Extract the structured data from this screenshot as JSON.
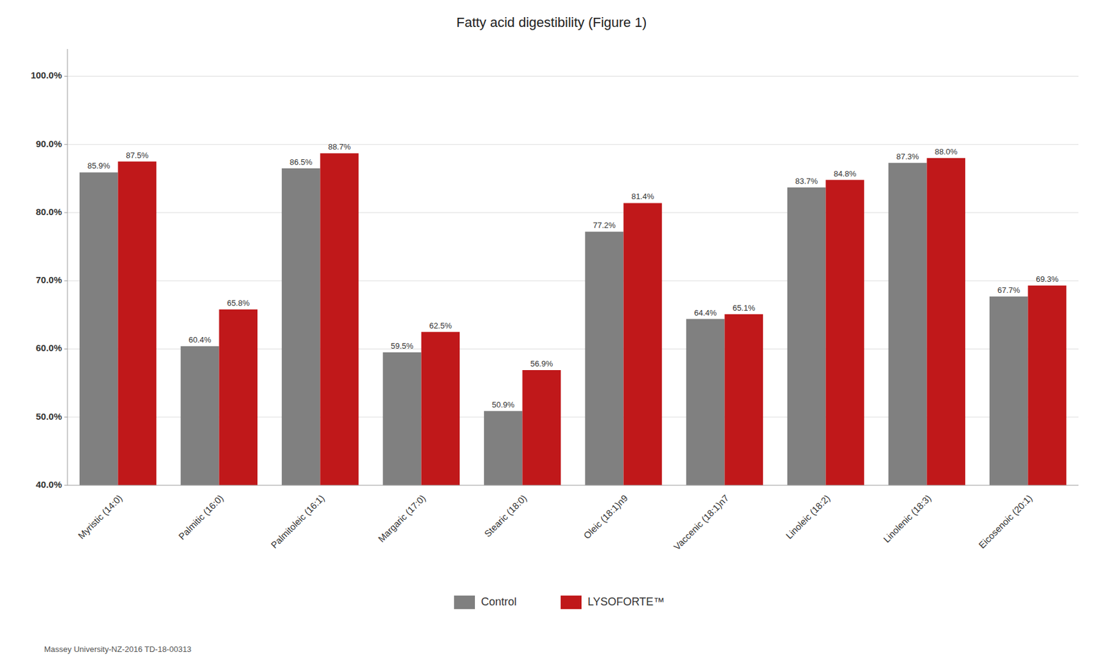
{
  "chart_data": {
    "type": "bar",
    "title": "Fatty acid digestibility (Figure 1)",
    "categories": [
      "Myristic (14:0)",
      "Palmitic (16:0)",
      "Palmitoleic (16:1)",
      "Margaric (17:0)",
      "Stearic (18:0)",
      "Oleic (18:1)n9",
      "Vaccenic (18:1)n7",
      "Linoleic (18:2)",
      "Linolenic (18:3)",
      "Eicosenoic (20:1)"
    ],
    "series": [
      {
        "name": "Control",
        "color": "#808080",
        "values": [
          85.9,
          60.4,
          86.5,
          59.5,
          50.9,
          77.2,
          64.4,
          83.7,
          87.3,
          67.7
        ],
        "value_labels": [
          "85.9%",
          "60.4%",
          "86.5%",
          "59.5%",
          "50.9%",
          "77.2%",
          "64.4%",
          "83.7%",
          "87.3%",
          "67.7%"
        ]
      },
      {
        "name": "LYSOFORTE™",
        "color": "#C0181A",
        "values": [
          87.5,
          65.8,
          88.7,
          62.5,
          56.9,
          81.4,
          65.1,
          84.8,
          88.0,
          69.3
        ],
        "value_labels": [
          "87.5%",
          "65.8%",
          "88.7%",
          "62.5%",
          "56.9%",
          "81.4%",
          "65.1%",
          "84.8%",
          "88.0%",
          "69.3%"
        ]
      }
    ],
    "ylim": [
      40.0,
      104.0
    ],
    "yticks": [
      {
        "value": 40.0,
        "label": "40.0%"
      },
      {
        "value": 50.0,
        "label": "50.0%"
      },
      {
        "value": 60.0,
        "label": "60.0%"
      },
      {
        "value": 70.0,
        "label": "70.0%"
      },
      {
        "value": 80.0,
        "label": "80.0%"
      },
      {
        "value": 90.0,
        "label": "90.0%"
      },
      {
        "value": 100.0,
        "label": "100.0%"
      }
    ],
    "grid": true,
    "legend": "bottom",
    "data_labels": true,
    "footnote": "Massey University-NZ-2016 TD-18-00313"
  }
}
